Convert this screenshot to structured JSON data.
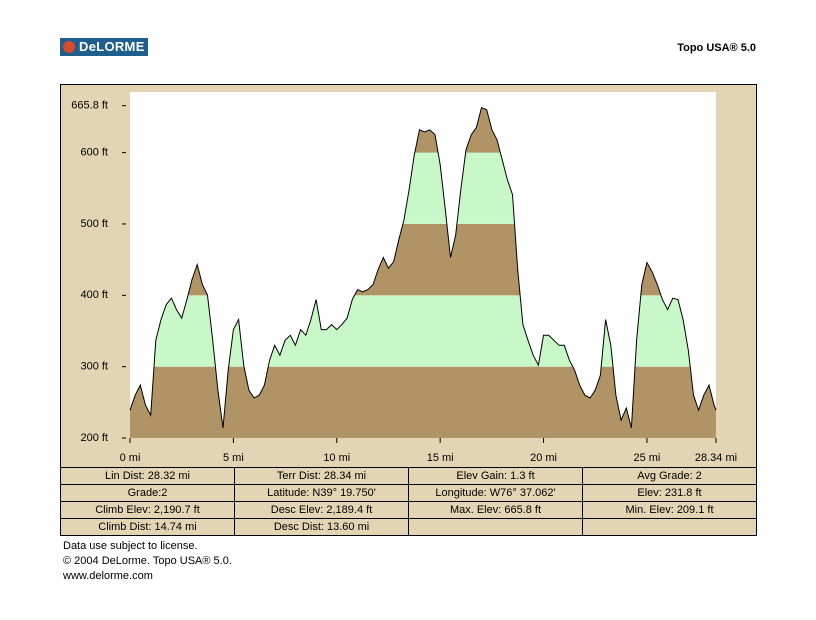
{
  "header": {
    "logo": "DeLORME",
    "product": "Topo USA® 5.0"
  },
  "chart_data": {
    "type": "area",
    "x": [
      0,
      0.25,
      0.5,
      0.75,
      1,
      1.25,
      1.5,
      1.75,
      2,
      2.25,
      2.5,
      2.75,
      3,
      3.25,
      3.5,
      3.75,
      4,
      4.25,
      4.5,
      4.75,
      5,
      5.25,
      5.5,
      5.75,
      6,
      6.25,
      6.5,
      6.75,
      7,
      7.25,
      7.5,
      7.75,
      8,
      8.25,
      8.5,
      8.75,
      9,
      9.25,
      9.5,
      9.75,
      10,
      10.25,
      10.5,
      10.75,
      11,
      11.25,
      11.5,
      11.75,
      12,
      12.25,
      12.5,
      12.75,
      13,
      13.25,
      13.5,
      13.75,
      14,
      14.25,
      14.5,
      14.75,
      15,
      15.25,
      15.5,
      15.75,
      16,
      16.25,
      16.5,
      16.75,
      17,
      17.25,
      17.5,
      17.75,
      18,
      18.25,
      18.5,
      18.75,
      19,
      19.25,
      19.5,
      19.75,
      20,
      20.25,
      20.5,
      20.75,
      21,
      21.25,
      21.5,
      21.75,
      22,
      22.25,
      22.5,
      22.75,
      23,
      23.25,
      23.5,
      23.75,
      24,
      24.25,
      24.5,
      24.75,
      25,
      25.25,
      25.5,
      25.75,
      26,
      26.25,
      26.5,
      26.75,
      27,
      27.25,
      27.5,
      27.75,
      28,
      28.25,
      28.34
    ],
    "values": [
      239,
      260,
      274,
      246,
      232,
      337,
      366,
      387,
      396,
      380,
      368,
      394,
      422,
      443,
      415,
      400,
      337,
      267,
      214,
      295,
      352,
      366,
      302,
      267,
      256,
      260,
      274,
      309,
      330,
      316,
      337,
      344,
      330,
      352,
      344,
      366,
      394,
      352,
      352,
      359,
      352,
      359,
      368,
      394,
      408,
      405,
      408,
      415,
      436,
      453,
      438,
      447,
      478,
      506,
      548,
      597,
      632,
      629,
      632,
      625,
      583,
      520,
      453,
      485,
      548,
      604,
      625,
      635,
      663,
      660,
      632,
      618,
      590,
      562,
      541,
      436,
      359,
      337,
      316,
      302,
      344,
      344,
      337,
      330,
      330,
      309,
      295,
      274,
      260,
      256,
      267,
      288,
      366,
      330,
      260,
      225,
      242,
      214,
      337,
      415,
      446,
      433,
      415,
      394,
      380,
      396,
      394,
      366,
      323,
      260,
      239,
      260,
      274,
      246,
      239
    ],
    "line_color": "#000000",
    "band_colors": [
      "#b09466",
      "#c8f8c8"
    ],
    "background": "#e3d5b4",
    "plot_background": "#ffffff",
    "xlim": [
      0,
      28.34
    ],
    "ylim": [
      200,
      685
    ],
    "xticks": [
      {
        "value": 0,
        "label": "0 mi"
      },
      {
        "value": 5,
        "label": "5 mi"
      },
      {
        "value": 10,
        "label": "10 mi"
      },
      {
        "value": 15,
        "label": "15 mi"
      },
      {
        "value": 20,
        "label": "20 mi"
      },
      {
        "value": 25,
        "label": "25 mi"
      },
      {
        "value": 28.34,
        "label": "28.34 mi"
      }
    ],
    "yticks": [
      {
        "value": 200,
        "label": "200 ft"
      },
      {
        "value": 300,
        "label": "300 ft"
      },
      {
        "value": 400,
        "label": "400 ft"
      },
      {
        "value": 500,
        "label": "500 ft"
      },
      {
        "value": 600,
        "label": "600 ft"
      },
      {
        "value": 665.8,
        "label": "665.8 ft"
      }
    ]
  },
  "stats": {
    "rows": [
      [
        "Lin Dist: 28.32 mi",
        "Terr Dist: 28.34 mi",
        "Elev Gain: 1.3 ft",
        "Avg Grade: 2"
      ],
      [
        "Grade:2",
        "Latitude: N39° 19.750'",
        "Longitude: W76° 37.062'",
        "Elev: 231.8 ft"
      ],
      [
        "Climb Elev: 2,190.7 ft",
        "Desc Elev: 2,189.4 ft",
        "Max. Elev: 665.8 ft",
        "Min. Elev: 209.1 ft"
      ],
      [
        "Climb Dist: 14.74 mi",
        "Desc Dist: 13.60 mi"
      ]
    ]
  },
  "footer": [
    "Data use subject to license.",
    "© 2004 DeLorme. Topo USA® 5.0.",
    "www.delorme.com"
  ]
}
